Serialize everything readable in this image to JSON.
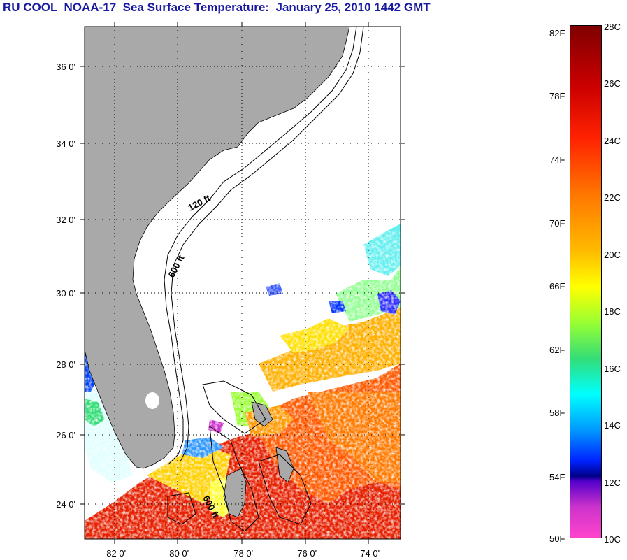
{
  "title": "RU COOL  NOAA-17  Sea Surface Temperature:  January 25, 2010 1442 GMT",
  "map": {
    "lat_labels": [
      "36 0'",
      "34 0'",
      "32 0'",
      "30 0'",
      "28 0'",
      "26 0'",
      "24 0'"
    ],
    "lon_labels": [
      "-82 0'",
      "-80 0'",
      "-78 0'",
      "-76 0'",
      "-74 0'"
    ],
    "contours": [
      "120 ft",
      "600 ft",
      "600 ft"
    ],
    "colors": {
      "land": "#a9a9a9",
      "ocean": "#ffffff",
      "coast": "#000000"
    }
  },
  "colorbar": {
    "fahrenheit": [
      "82F",
      "78F",
      "74F",
      "70F",
      "66F",
      "62F",
      "58F",
      "54F",
      "50F"
    ],
    "celsius": [
      "28C",
      "26C",
      "24C",
      "22C",
      "20C",
      "18C",
      "16C",
      "14C",
      "12C",
      "10C"
    ]
  }
}
